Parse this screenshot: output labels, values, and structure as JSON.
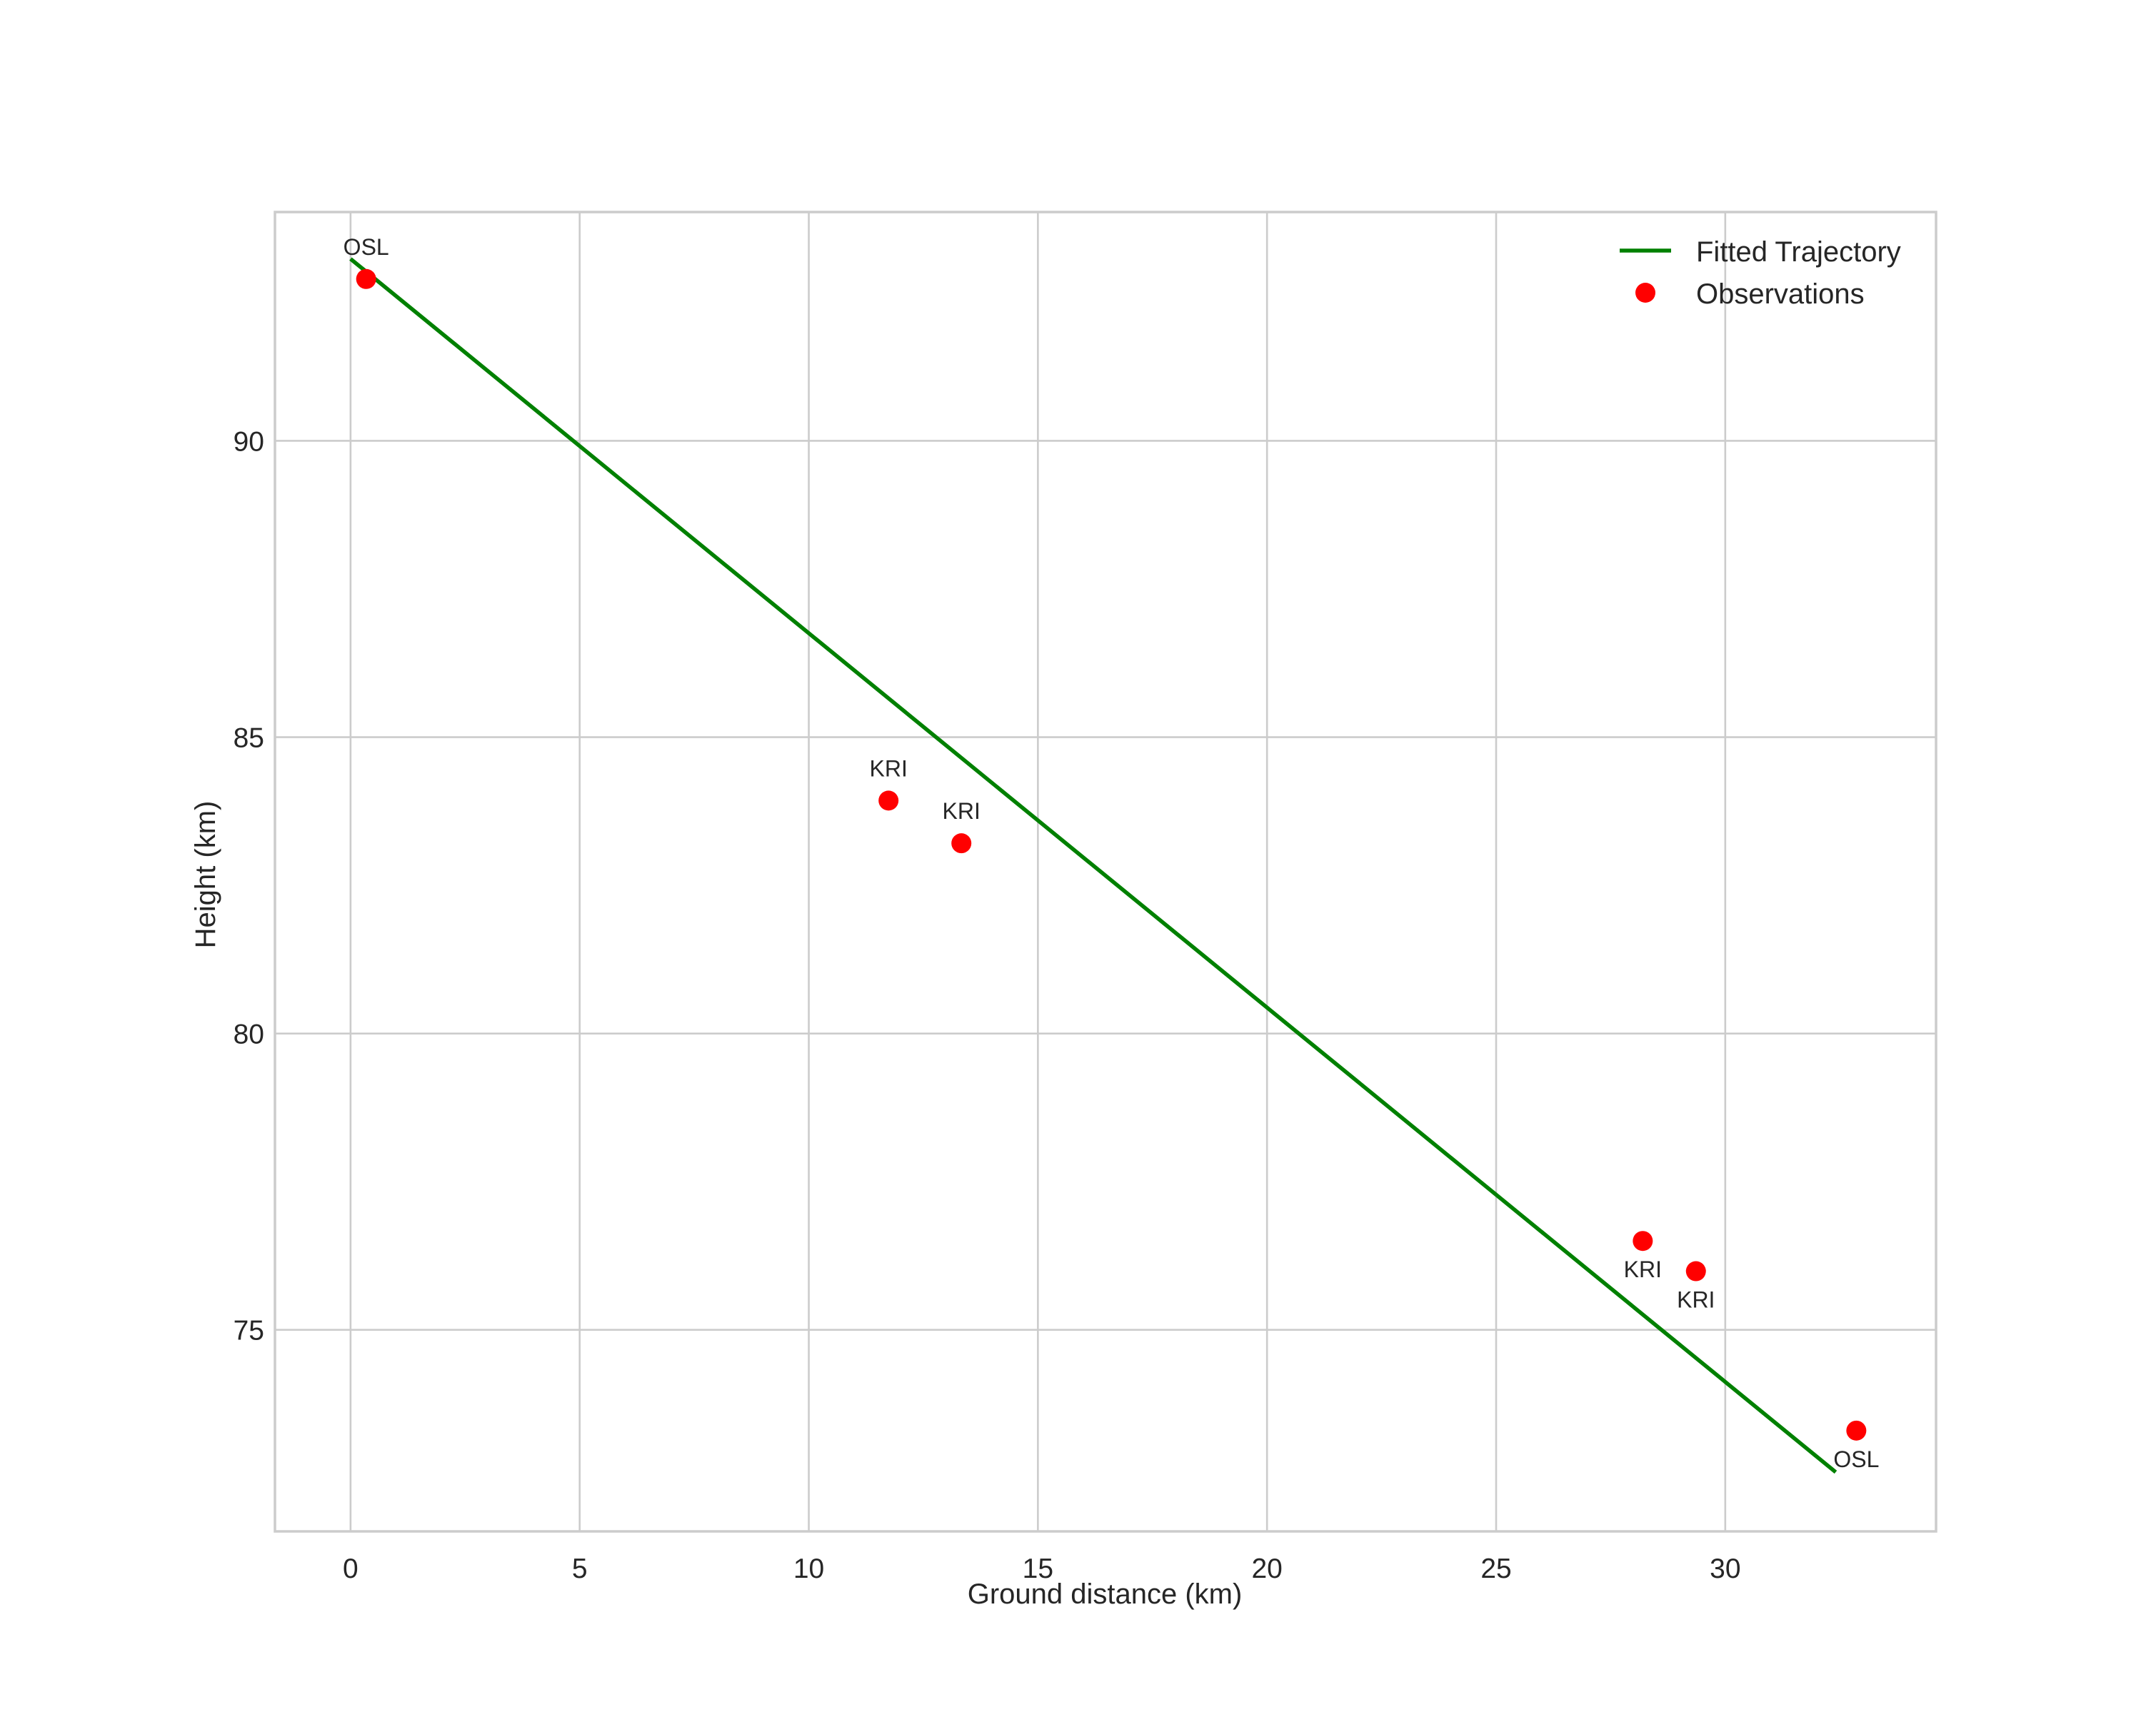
{
  "chart_data": {
    "type": "scatter",
    "title": "",
    "xlabel": "Ground distance (km)",
    "ylabel": "Height (km)",
    "xlim": [
      -1.65,
      34.6
    ],
    "ylim": [
      71.6,
      93.86
    ],
    "xticks": [
      0,
      5,
      10,
      15,
      20,
      25,
      30
    ],
    "yticks": [
      75,
      80,
      85,
      90
    ],
    "grid": true,
    "legend": {
      "position": "upper right",
      "entries": [
        "Fitted Trajectory",
        "Observations"
      ]
    },
    "series": [
      {
        "name": "Fitted Trajectory",
        "type": "line",
        "color": "#008000",
        "points": [
          {
            "x": 0.0,
            "y": 93.07
          },
          {
            "x": 32.41,
            "y": 72.6
          }
        ]
      },
      {
        "name": "Observations",
        "type": "scatter",
        "color": "#ff0000",
        "points": [
          {
            "x": 0.34,
            "y": 92.73,
            "label": "OSL",
            "label_pos": "above"
          },
          {
            "x": 11.74,
            "y": 83.93,
            "label": "KRI",
            "label_pos": "above"
          },
          {
            "x": 13.33,
            "y": 83.21,
            "label": "KRI",
            "label_pos": "above"
          },
          {
            "x": 28.2,
            "y": 76.5,
            "label": "KRI",
            "label_pos": "below"
          },
          {
            "x": 29.36,
            "y": 75.99,
            "label": "KRI",
            "label_pos": "below"
          },
          {
            "x": 32.86,
            "y": 73.3,
            "label": "OSL",
            "label_pos": "below"
          }
        ]
      }
    ]
  },
  "colors": {
    "grid": "#cccccc",
    "text": "#262626",
    "line": "#008000",
    "marker": "#ff0000",
    "background": "#ffffff"
  }
}
